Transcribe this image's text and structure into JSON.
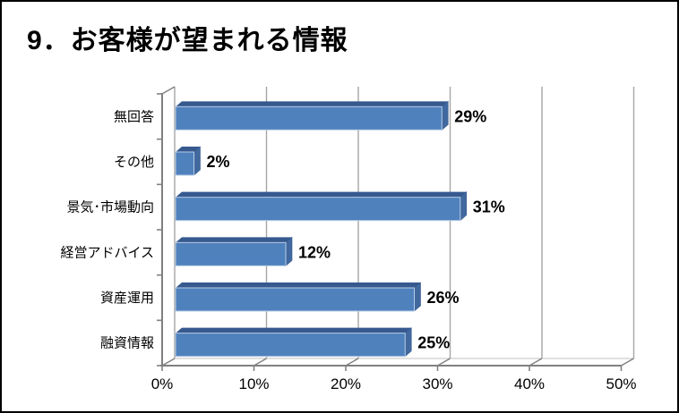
{
  "title": "9．お客様が望まれる情報",
  "chart_data": {
    "type": "bar",
    "orientation": "horizontal",
    "style": "3d",
    "title": "9．お客様が望まれる情報",
    "categories": [
      "無回答",
      "その他",
      "景気･市場動向",
      "経営アドバイス",
      "資産運用",
      "融資情報"
    ],
    "values": [
      29,
      2,
      31,
      12,
      26,
      25
    ],
    "data_labels": [
      "29%",
      "2%",
      "31%",
      "12%",
      "26%",
      "25%"
    ],
    "x_tick_labels": [
      "0%",
      "10%",
      "20%",
      "30%",
      "40%",
      "50%"
    ],
    "xlim": [
      0,
      50
    ],
    "x_tick_step": 10,
    "grid": "vertical",
    "legend": "none",
    "colors": {
      "bar_face": "#4f81bd",
      "bar_top": "#36598f",
      "bar_side": "#41699f",
      "bar_outline": "#b9cde5",
      "gridline": "#a6a6a6",
      "floor_back_edge": "#c0c0c0",
      "axis": "#808080",
      "label": "#000000",
      "background": "#ffffff",
      "border": "#000000"
    }
  }
}
